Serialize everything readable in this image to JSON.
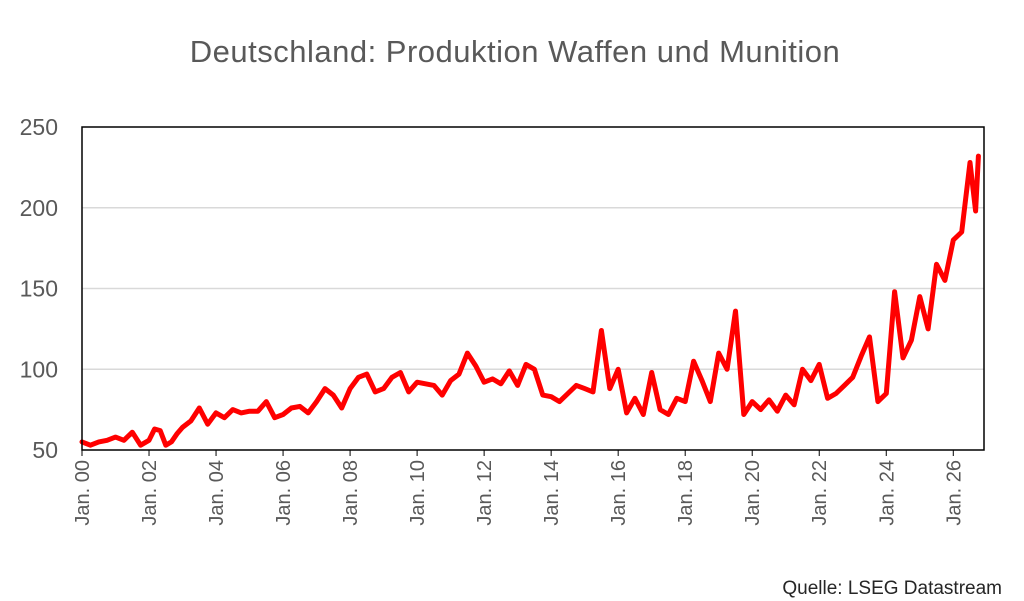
{
  "chart_data": {
    "type": "line",
    "title": "Deutschland: Produktion Waffen und Munition",
    "source": "Quelle: LSEG Datastream",
    "xlabel": "",
    "ylabel": "",
    "ylim": [
      50,
      250
    ],
    "xlim": [
      "2000-01",
      "2026-12"
    ],
    "y_ticks": [
      "50",
      "100",
      "150",
      "200",
      "250"
    ],
    "x_tick_labels": [
      "Jan. 00",
      "Jan. 02",
      "Jan. 04",
      "Jan. 06",
      "Jan. 08",
      "Jan. 10",
      "Jan. 12",
      "Jan. 14",
      "Jan. 16",
      "Jan. 18",
      "Jan. 20",
      "Jan. 22",
      "Jan. 24",
      "Jan. 26"
    ],
    "grid": "horizontal",
    "series": [
      {
        "color": "#ff0000",
        "points": [
          [
            "2000-01",
            55
          ],
          [
            "2000-04",
            53
          ],
          [
            "2000-07",
            55
          ],
          [
            "2000-10",
            56
          ],
          [
            "2001-01",
            58
          ],
          [
            "2001-04",
            56
          ],
          [
            "2001-07",
            61
          ],
          [
            "2001-10",
            53
          ],
          [
            "2002-01",
            56
          ],
          [
            "2002-03",
            63
          ],
          [
            "2002-05",
            62
          ],
          [
            "2002-07",
            53
          ],
          [
            "2002-09",
            55
          ],
          [
            "2002-11",
            60
          ],
          [
            "2003-01",
            64
          ],
          [
            "2003-04",
            68
          ],
          [
            "2003-07",
            76
          ],
          [
            "2003-10",
            66
          ],
          [
            "2004-01",
            73
          ],
          [
            "2004-04",
            70
          ],
          [
            "2004-07",
            75
          ],
          [
            "2004-10",
            73
          ],
          [
            "2005-01",
            74
          ],
          [
            "2005-04",
            74
          ],
          [
            "2005-07",
            80
          ],
          [
            "2005-10",
            70
          ],
          [
            "2006-01",
            72
          ],
          [
            "2006-04",
            76
          ],
          [
            "2006-07",
            77
          ],
          [
            "2006-10",
            73
          ],
          [
            "2007-01",
            80
          ],
          [
            "2007-04",
            88
          ],
          [
            "2007-07",
            84
          ],
          [
            "2007-10",
            76
          ],
          [
            "2008-01",
            88
          ],
          [
            "2008-04",
            95
          ],
          [
            "2008-07",
            97
          ],
          [
            "2008-10",
            86
          ],
          [
            "2009-01",
            88
          ],
          [
            "2009-04",
            95
          ],
          [
            "2009-07",
            98
          ],
          [
            "2009-10",
            86
          ],
          [
            "2010-01",
            92
          ],
          [
            "2010-04",
            91
          ],
          [
            "2010-07",
            90
          ],
          [
            "2010-10",
            84
          ],
          [
            "2011-01",
            93
          ],
          [
            "2011-04",
            97
          ],
          [
            "2011-07",
            110
          ],
          [
            "2011-10",
            102
          ],
          [
            "2012-01",
            92
          ],
          [
            "2012-04",
            94
          ],
          [
            "2012-07",
            91
          ],
          [
            "2012-10",
            99
          ],
          [
            "2013-01",
            90
          ],
          [
            "2013-04",
            103
          ],
          [
            "2013-07",
            100
          ],
          [
            "2013-10",
            84
          ],
          [
            "2014-01",
            83
          ],
          [
            "2014-04",
            80
          ],
          [
            "2014-07",
            85
          ],
          [
            "2014-10",
            90
          ],
          [
            "2015-01",
            88
          ],
          [
            "2015-04",
            86
          ],
          [
            "2015-07",
            124
          ],
          [
            "2015-10",
            88
          ],
          [
            "2016-01",
            100
          ],
          [
            "2016-04",
            73
          ],
          [
            "2016-07",
            82
          ],
          [
            "2016-10",
            72
          ],
          [
            "2017-01",
            98
          ],
          [
            "2017-04",
            75
          ],
          [
            "2017-07",
            72
          ],
          [
            "2017-10",
            82
          ],
          [
            "2018-01",
            80
          ],
          [
            "2018-04",
            105
          ],
          [
            "2018-07",
            93
          ],
          [
            "2018-10",
            80
          ],
          [
            "2019-01",
            110
          ],
          [
            "2019-04",
            100
          ],
          [
            "2019-07",
            136
          ],
          [
            "2019-10",
            72
          ],
          [
            "2020-01",
            80
          ],
          [
            "2020-04",
            75
          ],
          [
            "2020-07",
            81
          ],
          [
            "2020-10",
            74
          ],
          [
            "2021-01",
            84
          ],
          [
            "2021-04",
            78
          ],
          [
            "2021-07",
            100
          ],
          [
            "2021-10",
            93
          ],
          [
            "2022-01",
            103
          ],
          [
            "2022-04",
            82
          ],
          [
            "2022-07",
            85
          ],
          [
            "2022-10",
            90
          ],
          [
            "2023-01",
            95
          ],
          [
            "2023-04",
            108
          ],
          [
            "2023-07",
            120
          ],
          [
            "2023-10",
            80
          ],
          [
            "2024-01",
            85
          ],
          [
            "2024-04",
            148
          ],
          [
            "2024-07",
            107
          ],
          [
            "2024-10",
            118
          ],
          [
            "2025-01",
            145
          ],
          [
            "2025-04",
            125
          ],
          [
            "2025-07",
            165
          ],
          [
            "2025-10",
            155
          ],
          [
            "2026-01",
            180
          ],
          [
            "2026-04",
            185
          ],
          [
            "2026-07",
            228
          ],
          [
            "2026-09",
            198
          ],
          [
            "2026-10",
            232
          ]
        ]
      }
    ]
  }
}
